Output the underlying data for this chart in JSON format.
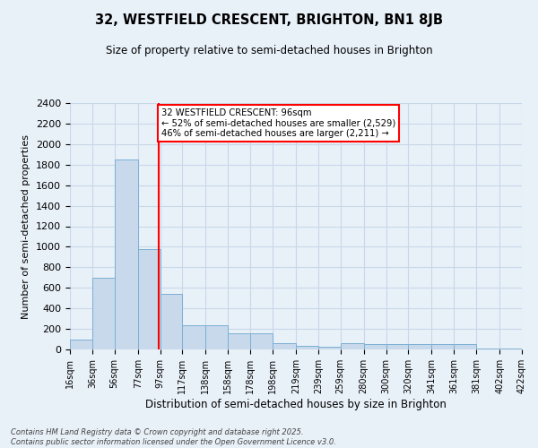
{
  "title": "32, WESTFIELD CRESCENT, BRIGHTON, BN1 8JB",
  "subtitle": "Size of property relative to semi-detached houses in Brighton",
  "xlabel": "Distribution of semi-detached houses by size in Brighton",
  "ylabel": "Number of semi-detached properties",
  "footnote": "Contains HM Land Registry data © Crown copyright and database right 2025.\nContains public sector information licensed under the Open Government Licence v3.0.",
  "bar_left_edges": [
    16,
    36,
    56,
    77,
    97,
    117,
    138,
    158,
    178,
    198,
    219,
    239,
    259,
    280,
    300,
    320,
    341,
    361,
    381,
    402
  ],
  "bar_widths": [
    20,
    20,
    21,
    20,
    20,
    21,
    20,
    20,
    20,
    21,
    20,
    20,
    21,
    20,
    20,
    21,
    20,
    20,
    21,
    20
  ],
  "bar_heights": [
    100,
    700,
    1850,
    980,
    545,
    240,
    240,
    155,
    155,
    60,
    35,
    30,
    65,
    55,
    55,
    55,
    55,
    55,
    10,
    5
  ],
  "bar_color": "#c9d9ec",
  "bar_edgecolor": "#7bafd4",
  "grid_color": "#c8d8e8",
  "background_color": "#e8f0f8",
  "property_size": 96,
  "annotation_text": "32 WESTFIELD CRESCENT: 96sqm\n← 52% of semi-detached houses are smaller (2,529)\n46% of semi-detached houses are larger (2,211) →",
  "annotation_box_color": "white",
  "annotation_box_edgecolor": "red",
  "vline_color": "red",
  "ylim": [
    0,
    2400
  ],
  "yticks": [
    0,
    200,
    400,
    600,
    800,
    1000,
    1200,
    1400,
    1600,
    1800,
    2000,
    2200,
    2400
  ],
  "tick_labels": [
    "16sqm",
    "36sqm",
    "56sqm",
    "77sqm",
    "97sqm",
    "117sqm",
    "138sqm",
    "158sqm",
    "178sqm",
    "198sqm",
    "219sqm",
    "239sqm",
    "259sqm",
    "280sqm",
    "300sqm",
    "320sqm",
    "341sqm",
    "361sqm",
    "381sqm",
    "402sqm",
    "422sqm"
  ]
}
